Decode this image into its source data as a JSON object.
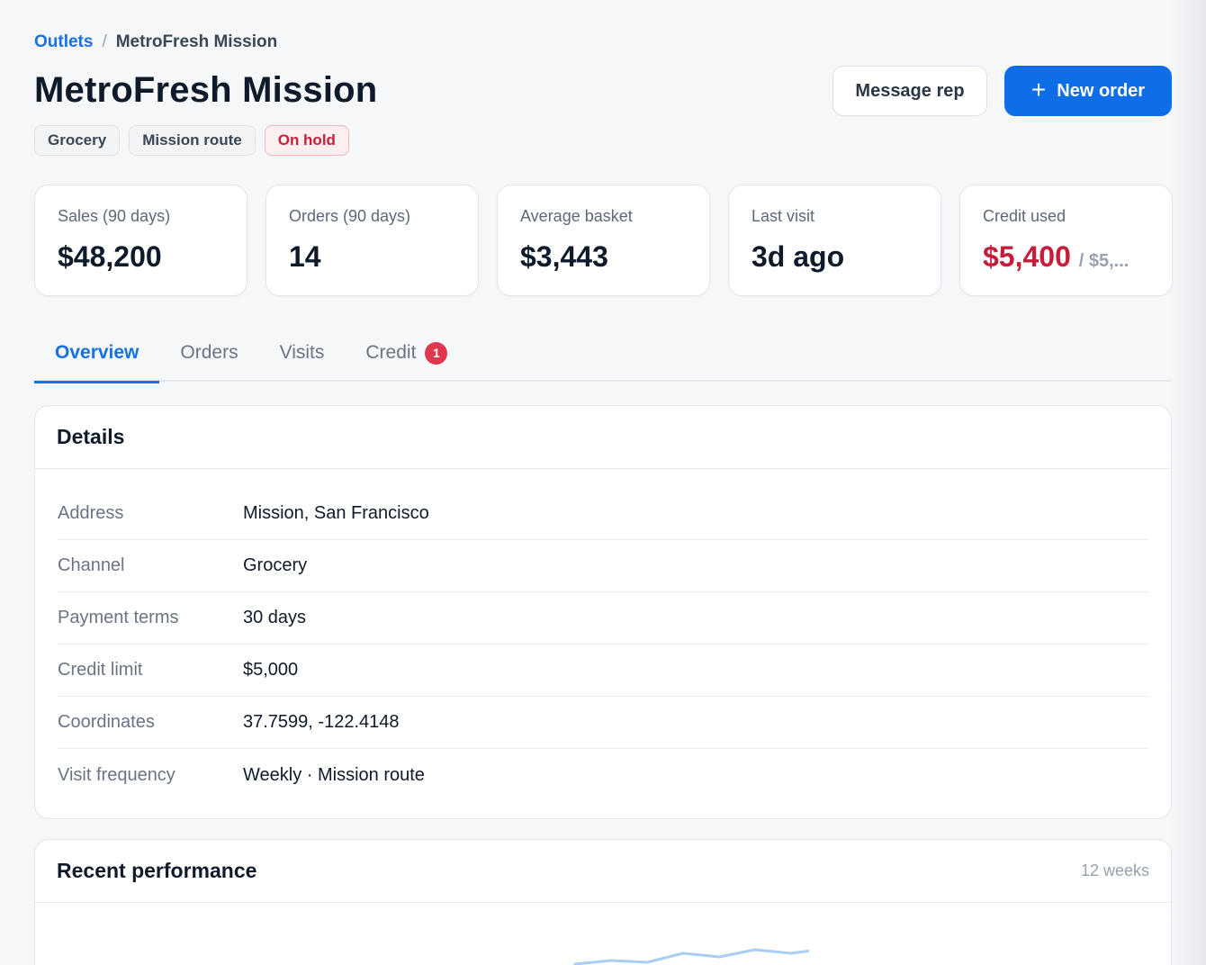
{
  "breadcrumb": {
    "parent": "Outlets",
    "separator": "/",
    "current": "MetroFresh Mission"
  },
  "header": {
    "title": "MetroFresh Mission",
    "message_button": "Message rep",
    "new_order_button": "New order",
    "new_order_icon": "+"
  },
  "tags": [
    "Grocery",
    "Mission route",
    "On hold"
  ],
  "stats": [
    {
      "label": "Sales (90 days)",
      "value": "$48,200"
    },
    {
      "label": "Orders (90 days)",
      "value": "14"
    },
    {
      "label": "Average basket",
      "value": "$3,443"
    },
    {
      "label": "Last visit",
      "value": "3d ago"
    },
    {
      "label": "Credit used",
      "value": "$5,400",
      "suffix": "/ $5,..."
    }
  ],
  "tabs": [
    {
      "label": "Overview"
    },
    {
      "label": "Orders"
    },
    {
      "label": "Visits"
    },
    {
      "label": "Credit",
      "badge": "1"
    }
  ],
  "details": {
    "title": "Details",
    "rows": [
      {
        "label": "Address",
        "value": "Mission, San Francisco"
      },
      {
        "label": "Channel",
        "value": "Grocery"
      },
      {
        "label": "Payment terms",
        "value": "30 days"
      },
      {
        "label": "Credit limit",
        "value": "$5,000"
      },
      {
        "label": "Coordinates",
        "value": "37.7599, -122.4148"
      },
      {
        "label": "Visit frequency",
        "value": "Weekly · Mission route"
      }
    ]
  },
  "performance": {
    "title": "Recent performance",
    "range": "12 weeks"
  },
  "colors": {
    "accent": "#0d6ee8",
    "danger": "#c41e3a",
    "badge": "#e0374f"
  }
}
